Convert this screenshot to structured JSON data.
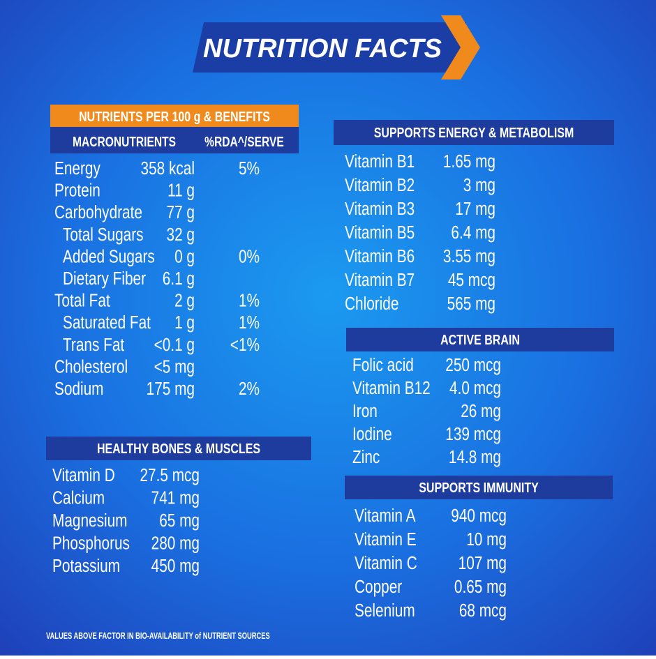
{
  "header": {
    "title": "NUTRITION FACTS"
  },
  "macronutrients": {
    "banner": "NUTRIENTS PER 100 g & BENEFITS",
    "columns": [
      "MACRONUTRIENTS",
      "%RDA^/SERVE"
    ],
    "rows": [
      {
        "name": "Energy",
        "amount": "358 kcal",
        "rda": "5%"
      },
      {
        "name": "Protein",
        "amount": "11 g"
      },
      {
        "name": "Carbohydrate",
        "amount": "77 g"
      },
      {
        "name": "Total Sugars",
        "amount": "32 g",
        "indent": true
      },
      {
        "name": "Added Sugars",
        "amount": "0 g",
        "rda": "0%",
        "indent": true
      },
      {
        "name": "Dietary Fiber",
        "amount": "6.1 g",
        "indent": true
      },
      {
        "name": "Total Fat",
        "amount": "2 g",
        "rda": "1%"
      },
      {
        "name": "Saturated Fat",
        "amount": "1 g",
        "rda": "1%",
        "indent": true
      },
      {
        "name": "Trans Fat",
        "amount": "<0.1 g",
        "rda": "<1%",
        "indent": true
      },
      {
        "name": "Cholesterol",
        "amount": "<5 mg"
      },
      {
        "name": "Sodium",
        "amount": "175 mg",
        "rda": "2%"
      }
    ]
  },
  "sections": [
    {
      "title": "SUPPORTS ENERGY & METABOLISM",
      "rows": [
        [
          "Vitamin B1",
          "1.65 mg"
        ],
        [
          "Vitamin B2",
          "3 mg"
        ],
        [
          "Vitamin B3",
          "17 mg"
        ],
        [
          "Vitamin B5",
          "6.4 mg"
        ],
        [
          "Vitamin B6",
          "3.55 mg"
        ],
        [
          "Vitamin B7",
          "45 mcg"
        ],
        [
          "Chloride",
          "565 mg"
        ]
      ]
    },
    {
      "title": "ACTIVE BRAIN",
      "rows": [
        [
          "Folic acid",
          "250 mcg"
        ],
        [
          "Vitamin B12",
          "4.0 mcg"
        ],
        [
          "Iron",
          "26 mg"
        ],
        [
          "Iodine",
          "139 mcg"
        ],
        [
          "Zinc",
          "14.8 mg"
        ]
      ]
    },
    {
      "title": "SUPPORTS IMMUNITY",
      "rows": [
        [
          "Vitamin A",
          "940 mcg"
        ],
        [
          "Vitamin E",
          "10 mg"
        ],
        [
          "Vitamin C",
          "107 mg"
        ],
        [
          "Copper",
          "0.65 mg"
        ],
        [
          "Selenium",
          "68 mcg"
        ]
      ]
    },
    {
      "title": "HEALTHY BONES & MUSCLES",
      "rows": [
        [
          "Vitamin D",
          "27.5 mcg"
        ],
        [
          "Calcium",
          "741 mg"
        ],
        [
          "Magnesium",
          "65 mg"
        ],
        [
          "Phosphorus",
          "280 mg"
        ],
        [
          "Potassium",
          "450 mg"
        ]
      ]
    }
  ],
  "footer": "VALUES ABOVE FACTOR IN BIO-AVAILABILITY of NUTRIENT SOURCES"
}
